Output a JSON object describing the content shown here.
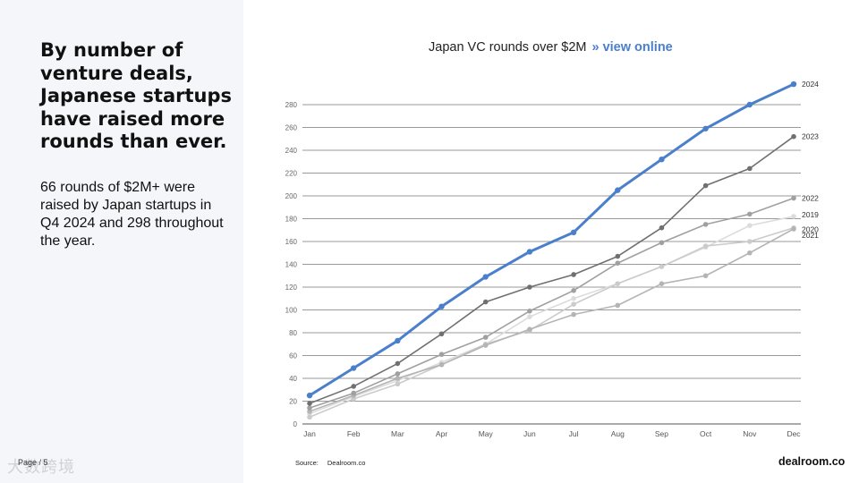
{
  "left": {
    "headline": "By number of venture deals, Japanese startups have raised more rounds than ever.",
    "body": "66 rounds of $2M+ were raised by Japan startups in Q4 2024 and 298 throughout the year.",
    "page": "Page / 5",
    "watermark": "大数跨境"
  },
  "chart_title": {
    "text": "Japan VC rounds over $2M",
    "separator": "»",
    "link": "view online"
  },
  "footer": {
    "source_label": "Source:",
    "source_value": "Dealroom.co",
    "logo": "dealroom.co"
  },
  "colors": {
    "accent": "#4a7fcb",
    "grid": "#9a9a9a"
  },
  "chart_data": {
    "type": "line",
    "categories": [
      "Jan",
      "Feb",
      "Mar",
      "Apr",
      "May",
      "Jun",
      "Jul",
      "Aug",
      "Sep",
      "Oct",
      "Nov",
      "Dec"
    ],
    "yticks": [
      0,
      20,
      40,
      60,
      80,
      100,
      120,
      140,
      160,
      180,
      200,
      220,
      240,
      260,
      280
    ],
    "ylim": [
      0,
      290
    ],
    "grid": true,
    "series": [
      {
        "name": "2019",
        "color": "#dcdcdc",
        "values": [
          9,
          24,
          38,
          54,
          70,
          94,
          110,
          123,
          138,
          155,
          174,
          182
        ]
      },
      {
        "name": "2020",
        "color": "#cbcbcb",
        "values": [
          6,
          22,
          35,
          52,
          70,
          82,
          105,
          123,
          138,
          156,
          160,
          172
        ]
      },
      {
        "name": "2021",
        "color": "#b4b4b4",
        "values": [
          11,
          25,
          40,
          52,
          69,
          83,
          96,
          104,
          123,
          130,
          150,
          171
        ]
      },
      {
        "name": "2022",
        "color": "#a0a0a0",
        "values": [
          14,
          27,
          44,
          61,
          76,
          99,
          117,
          141,
          159,
          175,
          184,
          198
        ]
      },
      {
        "name": "2023",
        "color": "#707070",
        "values": [
          18,
          33,
          53,
          79,
          107,
          120,
          131,
          147,
          172,
          209,
          224,
          252
        ]
      },
      {
        "name": "2024",
        "color": "#4a7fcb",
        "values": [
          25,
          49,
          73,
          103,
          129,
          151,
          168,
          205,
          232,
          259,
          280,
          298
        ]
      }
    ]
  }
}
